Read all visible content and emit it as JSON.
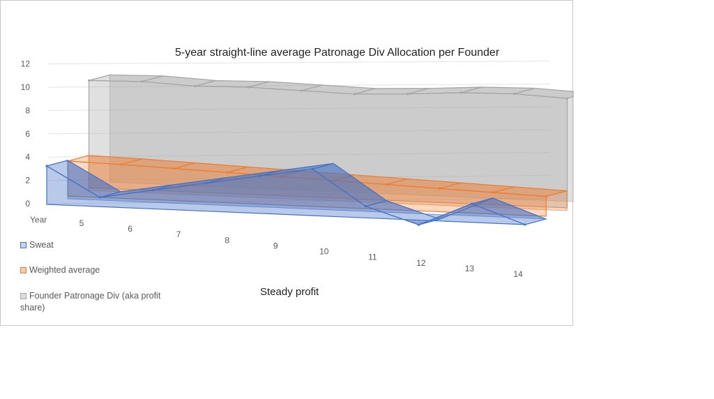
{
  "chart_data": {
    "type": "line",
    "subtype": "3d-line",
    "title": "5-year straight-line average Patronage Div Allocation per Founder",
    "subtitle": "Steady profit",
    "xlabel": "",
    "ylabel": "",
    "x_axis_title": "Year",
    "categories": [
      "5",
      "6",
      "7",
      "8",
      "9",
      "10",
      "11",
      "12",
      "13",
      "14"
    ],
    "y_ticks": [
      "0",
      "2",
      "4",
      "6",
      "8",
      "10",
      "12"
    ],
    "ylim": [
      0,
      12
    ],
    "grid": true,
    "legend_position": "left",
    "series": [
      {
        "name": "Sweat",
        "color": "#4472c4",
        "values": [
          3.3,
          0.8,
          1.6,
          2.4,
          3.2,
          4.0,
          1.0,
          -0.4,
          1.6,
          0.0
        ]
      },
      {
        "name": "Weighted average",
        "color": "#ed7d31",
        "values": [
          3.0,
          2.9,
          2.75,
          2.6,
          2.45,
          2.3,
          2.15,
          2.0,
          1.85,
          1.7
        ]
      },
      {
        "name": "Founder Patronage Div (aka profit share)",
        "color": "#a5a5a5",
        "values": [
          9.2,
          9.3,
          9.1,
          9.2,
          9.1,
          9.0,
          9.2,
          9.5,
          9.6,
          9.4
        ]
      }
    ]
  }
}
